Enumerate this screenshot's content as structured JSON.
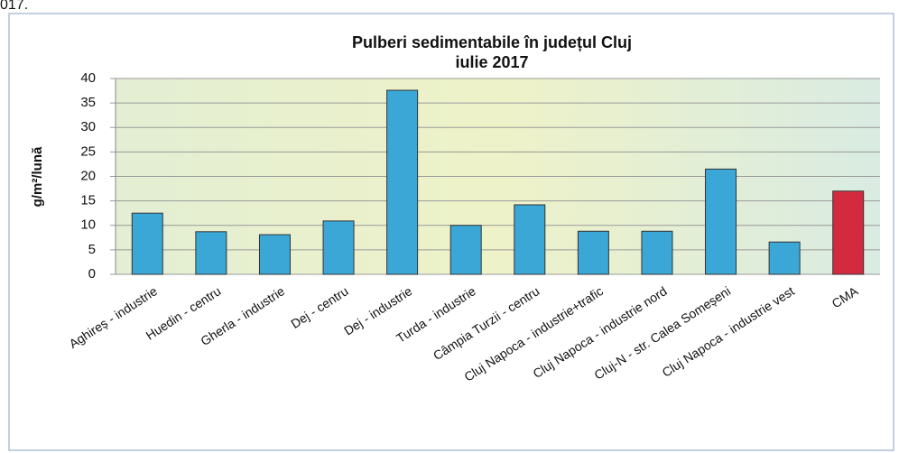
{
  "caption_fragment": "017.",
  "chart_data": {
    "type": "bar",
    "title_lines": [
      "Pulberi sedimentabile în județul Cluj",
      "iulie 2017"
    ],
    "y_label": "g/m²/lună",
    "categories": [
      "Aghireș - industrie",
      "Huedin - centru",
      "Gherla - industrie",
      "Dej - centru",
      "Dej - industrie",
      "Turda - industrie",
      "Câmpia Turzii - centru",
      "Cluj Napoca - industrie+trafic",
      "Cluj Napoca - industrie nord",
      "Cluj-N - str. Calea Someșeni",
      "Cluj Napoca - industrie vest",
      "CMA"
    ],
    "values": [
      12.5,
      8.7,
      8.1,
      10.9,
      37.6,
      10.0,
      14.2,
      8.8,
      8.8,
      21.5,
      6.6,
      17
    ],
    "colors": [
      "#3ba7d6",
      "#3ba7d6",
      "#3ba7d6",
      "#3ba7d6",
      "#3ba7d6",
      "#3ba7d6",
      "#3ba7d6",
      "#3ba7d6",
      "#3ba7d6",
      "#3ba7d6",
      "#3ba7d6",
      "#d42a40"
    ],
    "ylim": [
      0,
      40
    ],
    "yticks": [
      0,
      5,
      10,
      15,
      20,
      25,
      30,
      35,
      40
    ],
    "grid": true
  }
}
